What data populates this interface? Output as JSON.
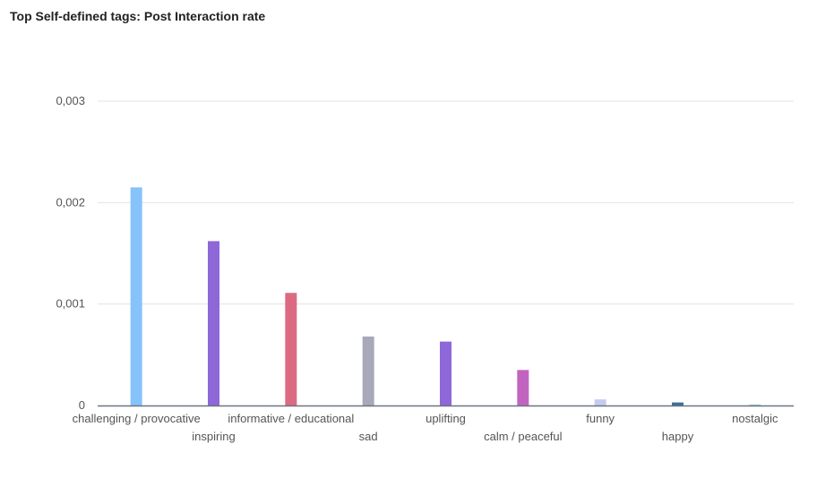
{
  "title": "Top Self-defined tags: Post Interaction rate",
  "chart_data": {
    "type": "bar",
    "title": "Top Self-defined tags: Post Interaction rate",
    "xlabel": "",
    "ylabel": "",
    "ylim": [
      0,
      0.003
    ],
    "yticks": [
      0,
      0.001,
      0.002,
      0.003
    ],
    "ytick_labels": [
      "0",
      "0,001",
      "0,002",
      "0,003"
    ],
    "grid": true,
    "categories": [
      "challenging / provocative",
      "inspiring",
      "informative / educational",
      "sad",
      "uplifting",
      "calm / peaceful",
      "funny",
      "happy",
      "nostalgic"
    ],
    "values": [
      0.00215,
      0.00162,
      0.00111,
      0.00068,
      0.00063,
      0.00035,
      6e-05,
      3e-05,
      1e-05
    ],
    "colors": [
      "#85c3fa",
      "#8e67d8",
      "#dc6b82",
      "#a8a8ba",
      "#8e67d8",
      "#c164c0",
      "#c5cbee",
      "#3d6f9e",
      "#9fd3d0"
    ]
  }
}
